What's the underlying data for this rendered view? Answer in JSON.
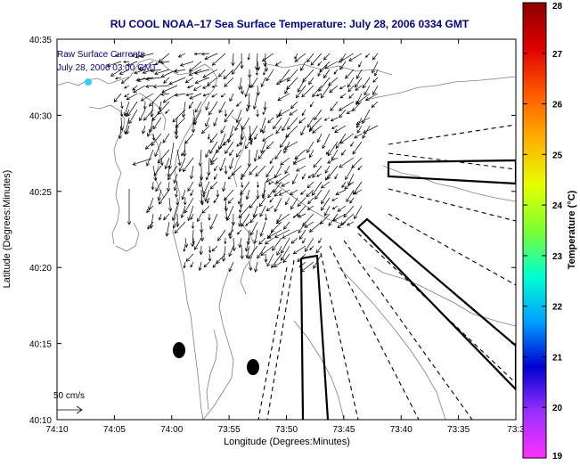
{
  "title": "RU COOL  NOAA–17  Sea Surface Temperature:  July 28, 2006 0334 GMT",
  "overlay": {
    "line1": "Raw Surface Currents",
    "line2": "July 28, 2006 03:00 GMT"
  },
  "axes": {
    "xlabel": "Longitude (Degrees:Minutes)",
    "ylabel": "Latitude (Degrees:Minutes)",
    "xticks": [
      "74:10",
      "74:05",
      "74:00",
      "73:55",
      "73:50",
      "73:45",
      "73:40",
      "73:35",
      "73:3"
    ],
    "yticks": [
      "40:35",
      "40:30",
      "40:25",
      "40:20",
      "40:15",
      "40:10"
    ]
  },
  "scale_label": "50 cm/s",
  "colorbar": {
    "label": "Temperature (°C)",
    "ticks": [
      "28",
      "27",
      "26",
      "25",
      "24",
      "23",
      "22",
      "21",
      "20",
      "19"
    ],
    "colors": [
      "#8b0000",
      "#e00000",
      "#ff5a00",
      "#ffb000",
      "#e6ff00",
      "#7dff30",
      "#00ffd0",
      "#00a0ff",
      "#0000d0",
      "#9a30ff",
      "#ff30ff"
    ]
  },
  "colors": {
    "title": "#00008b",
    "axes": "#000000",
    "contour": "#808080"
  }
}
